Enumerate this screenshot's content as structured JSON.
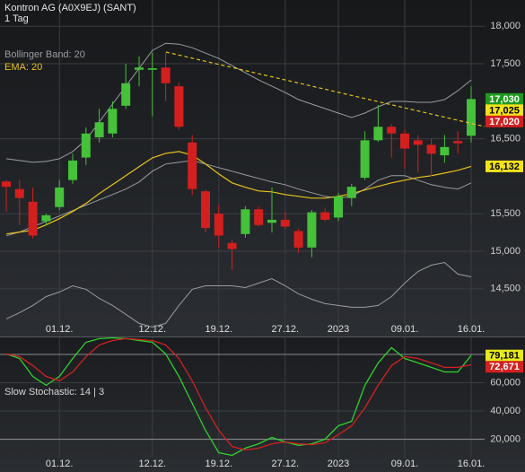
{
  "chart_data": [
    {
      "type": "candlestick",
      "title": "Kontron AG (A0X9EJ) (SANT)",
      "subtitle": "1 Tag",
      "categories": [
        null,
        null,
        null,
        null,
        "01.12.",
        null,
        null,
        null,
        null,
        null,
        null,
        "12.12.",
        null,
        null,
        null,
        null,
        "19.12.",
        null,
        null,
        null,
        null,
        "27.12.",
        null,
        null,
        null,
        "2023",
        null,
        null,
        null,
        null,
        "09.01.",
        null,
        null,
        null,
        null,
        "16.01."
      ],
      "open": [
        15930,
        15830,
        15660,
        15400,
        15590,
        15950,
        16250,
        16520,
        16570,
        16940,
        17420,
        17420,
        17450,
        17200,
        16450,
        15800,
        15500,
        15110,
        15230,
        15560,
        15380,
        15420,
        15270,
        15050,
        15520,
        15450,
        15710,
        15980,
        16480,
        16660,
        16570,
        16480,
        16420,
        16280,
        16470,
        16540
      ],
      "high": [
        15950,
        15950,
        15850,
        15500,
        15950,
        16300,
        16650,
        16900,
        17000,
        17500,
        17600,
        17650,
        17650,
        17250,
        16550,
        15820,
        15620,
        15150,
        15600,
        15600,
        15850,
        15520,
        15300,
        15550,
        15580,
        15780,
        15900,
        16600,
        16950,
        16700,
        16620,
        16550,
        16500,
        16550,
        16600,
        17200
      ],
      "low": [
        15530,
        15350,
        15170,
        15350,
        15550,
        15900,
        16150,
        16450,
        16520,
        16900,
        17200,
        16800,
        17000,
        16620,
        15750,
        15250,
        15050,
        14750,
        15180,
        15330,
        15250,
        15300,
        14980,
        14920,
        15400,
        15400,
        15600,
        15950,
        16460,
        16250,
        16100,
        16050,
        16000,
        16180,
        16300,
        16450
      ],
      "close": [
        15860,
        15710,
        15210,
        15480,
        15850,
        16210,
        16570,
        16720,
        16900,
        17240,
        17450,
        17440,
        17240,
        16660,
        15830,
        15310,
        15210,
        15030,
        15560,
        15350,
        15420,
        15330,
        15050,
        15520,
        15420,
        15730,
        15860,
        16480,
        16660,
        16570,
        16370,
        16420,
        16300,
        16390,
        16440,
        17030
      ],
      "up_color": "#45c13a",
      "down_color": "#d41f1f",
      "bollinger": {
        "label": "Bollinger Band: 20",
        "color": "#9a9c9f",
        "upper": [
          16234,
          16210,
          16186,
          16198,
          16234,
          16330,
          16485,
          16724,
          16962,
          17201,
          17439,
          17678,
          17773,
          17761,
          17714,
          17642,
          17570,
          17475,
          17380,
          17284,
          17201,
          17117,
          17022,
          16962,
          16902,
          16843,
          16783,
          16843,
          16926,
          16998,
          16998,
          16986,
          16986,
          17022,
          17141,
          17284
        ],
        "middle": [
          15208,
          15256,
          15328,
          15399,
          15471,
          15542,
          15614,
          15686,
          15757,
          15829,
          15924,
          16067,
          16163,
          16186,
          16210,
          16163,
          16115,
          16067,
          16019,
          15972,
          15924,
          15888,
          15829,
          15781,
          15733,
          15709,
          15733,
          15829,
          15948,
          16008,
          16008,
          15948,
          15888,
          15853,
          15829,
          15912
        ],
        "lower": [
          14099,
          14182,
          14278,
          14397,
          14457,
          14540,
          14493,
          14373,
          14278,
          14159,
          14039,
          13990,
          14039,
          14278,
          14493,
          14540,
          14540,
          14540,
          14516,
          14576,
          14636,
          14540,
          14433,
          14361,
          14302,
          14278,
          14254,
          14254,
          14278,
          14397,
          14576,
          14731,
          14815,
          14851,
          14695,
          14660
        ]
      },
      "ema": {
        "label": "EMA: 20",
        "color": "#e8c21c",
        "values": [
          15232,
          15256,
          15280,
          15352,
          15435,
          15530,
          15638,
          15769,
          15888,
          16008,
          16127,
          16246,
          16306,
          16330,
          16282,
          16163,
          16031,
          15912,
          15853,
          15805,
          15793,
          15757,
          15733,
          15709,
          15709,
          15733,
          15769,
          15817,
          15865,
          15912,
          15948,
          15984,
          16008,
          16043,
          16079,
          16132
        ]
      },
      "ylim": [
        13900,
        18350
      ],
      "yticks": [
        {
          "value": 14500,
          "label": "14,500"
        },
        {
          "value": 15000,
          "label": "15,000"
        },
        {
          "value": 15500,
          "label": "15,500"
        },
        {
          "value": 16500,
          "label": "16,500"
        },
        {
          "value": 17500,
          "label": "17,500"
        },
        {
          "value": 18000,
          "label": "18,000"
        }
      ],
      "grid": true,
      "price_tags": [
        {
          "value": 17030,
          "label": "17,030",
          "color": "#1f9a1f",
          "text_color": "#ffffff"
        },
        {
          "value": 17025,
          "label": "17,025",
          "color": "#f4e21a",
          "text_color": "#000000"
        },
        {
          "value": 17020,
          "label": "17,020",
          "color": "#d41f1f",
          "text_color": "#ffffff"
        },
        {
          "value": 16132,
          "label": "16,132",
          "color": "#f4e21a",
          "text_color": "#000000"
        }
      ]
    },
    {
      "type": "line",
      "title": "Slow Stochastic: 14 | 3",
      "categories": [
        null,
        null,
        null,
        null,
        "01.12.",
        null,
        null,
        null,
        null,
        null,
        null,
        "12.12.",
        null,
        null,
        null,
        null,
        "19.12.",
        null,
        null,
        null,
        null,
        "27.12.",
        null,
        null,
        null,
        "2023",
        null,
        null,
        null,
        null,
        "09.01.",
        null,
        null,
        null,
        null,
        "16.01."
      ],
      "series": [
        {
          "color": "#2fd12f",
          "values": [
            80.3,
            77.1,
            64.4,
            58.1,
            64.4,
            77.1,
            88.6,
            91.1,
            91.7,
            91.1,
            89.8,
            88.6,
            80.3,
            64.4,
            45.4,
            26.3,
            10.5,
            8.6,
            13.7,
            16.8,
            21.3,
            18.1,
            15.6,
            16.8,
            20.0,
            29.5,
            32.7,
            58.1,
            74.0,
            84.8,
            77.1,
            74.0,
            70.8,
            67.6,
            67.6,
            79.181
          ]
        },
        {
          "color": "#d42020",
          "values": [
            80.3,
            78.4,
            72.1,
            64.4,
            61.3,
            67.6,
            78.4,
            86.7,
            89.8,
            91.1,
            90.5,
            89.8,
            86.7,
            77.1,
            61.3,
            42.2,
            26.3,
            14.9,
            12.4,
            13.7,
            16.8,
            18.1,
            16.8,
            16.2,
            17.5,
            23.2,
            29.5,
            42.2,
            58.1,
            72.1,
            78.4,
            77.1,
            74.0,
            70.8,
            70.8,
            72.671
          ]
        }
      ],
      "ylim": [
        7,
        92
      ],
      "yticks": [
        {
          "value": 20,
          "label": "20,000"
        },
        {
          "value": 40,
          "label": "40,000"
        },
        {
          "value": 60,
          "label": "60,000"
        }
      ],
      "levels": [
        20,
        80
      ],
      "grid": true,
      "price_tags": [
        {
          "value": 79.181,
          "label": "79,181",
          "color": "#e7ea1c",
          "text_color": "#000000"
        },
        {
          "value": 72.671,
          "label": "72,671",
          "color": "#d42020",
          "text_color": "#ffffff"
        }
      ]
    }
  ]
}
